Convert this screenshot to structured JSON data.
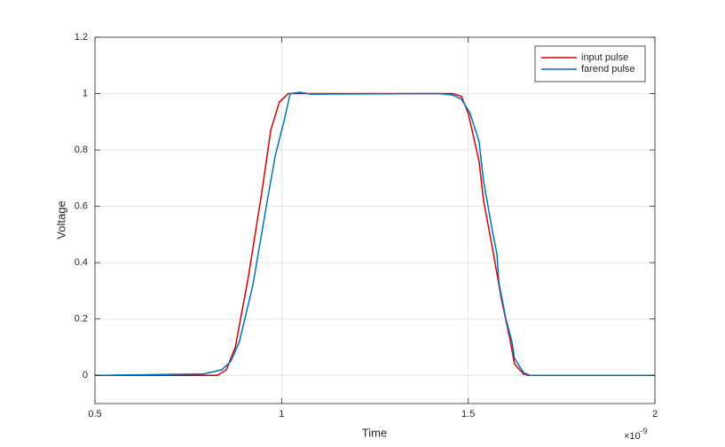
{
  "chart_data": {
    "type": "line",
    "x_label": "Time",
    "y_label": "Voltage",
    "x_multiplier": {
      "base": "×10",
      "exponent": "-9"
    },
    "xlim": [
      0.5,
      2
    ],
    "ylim": [
      -0.1,
      1.2
    ],
    "xticks": [
      0.5,
      1,
      1.5,
      2
    ],
    "yticks": [
      0,
      0.2,
      0.4,
      0.6,
      0.8,
      1,
      1.2
    ],
    "grid": true,
    "legend_position": "northeast",
    "series": [
      {
        "name": "input pulse",
        "color": "#d60000",
        "x": [
          0.5,
          0.828,
          0.852,
          0.876,
          0.911,
          0.947,
          0.971,
          0.994,
          1.018,
          1.458,
          1.482,
          1.5,
          1.529,
          1.541,
          1.565,
          1.589,
          1.613,
          1.624,
          1.648,
          1.66,
          2
        ],
        "values": [
          0,
          0,
          0.02,
          0.1,
          0.35,
          0.65,
          0.87,
          0.97,
          1.0,
          1.0,
          0.99,
          0.93,
          0.76,
          0.62,
          0.45,
          0.27,
          0.12,
          0.04,
          0.005,
          0,
          0
        ]
      },
      {
        "name": "farend pulse",
        "color": "#0072bd",
        "x": [
          0.5,
          0.792,
          0.84,
          0.864,
          0.887,
          0.923,
          0.959,
          0.983,
          1.006,
          1.018,
          1.023,
          1.049,
          1.078,
          1.422,
          1.458,
          1.482,
          1.505,
          1.529,
          1.541,
          1.553,
          1.565,
          1.577,
          1.582,
          1.601,
          1.617,
          1.624,
          1.648,
          1.665,
          2
        ],
        "values": [
          0,
          0.005,
          0.02,
          0.05,
          0.12,
          0.32,
          0.6,
          0.78,
          0.9,
          0.97,
          1.0,
          1.005,
          0.998,
          1.0,
          0.995,
          0.98,
          0.93,
          0.83,
          0.69,
          0.6,
          0.51,
          0.43,
          0.33,
          0.2,
          0.12,
          0.06,
          0.01,
          0,
          0
        ]
      }
    ]
  }
}
